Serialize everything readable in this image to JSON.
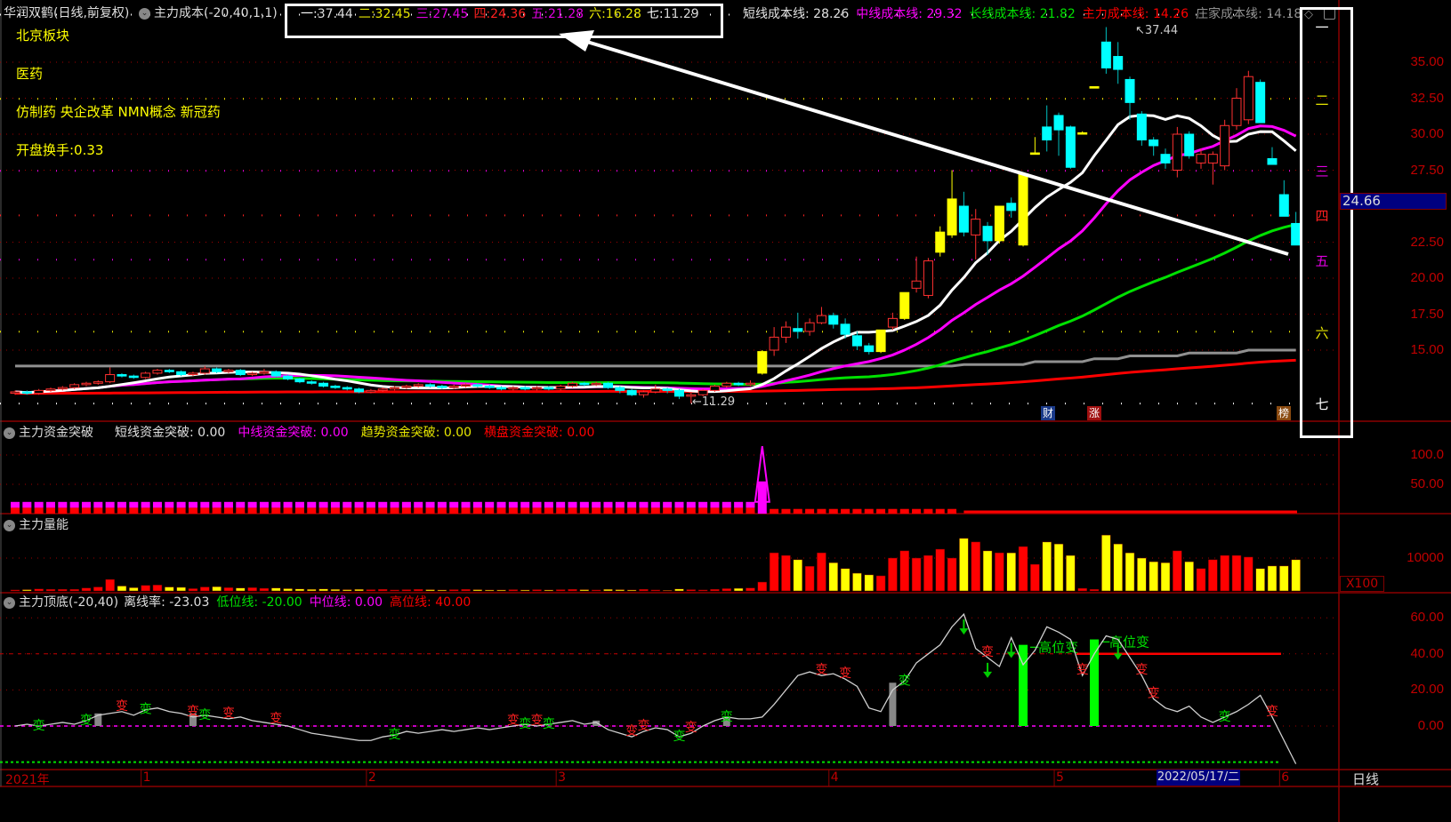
{
  "header": {
    "title": "华润双鹤(日线,前复权)",
    "indicator": "主力成本(-20,40,1,1)",
    "levels": [
      {
        "label": "一",
        "value": "37.44",
        "color": "#ffffff",
        "price": 37.44
      },
      {
        "label": "二",
        "value": "32.45",
        "color": "#e6e600",
        "price": 32.45
      },
      {
        "label": "三",
        "value": "27.45",
        "color": "#e000e0",
        "price": 27.45
      },
      {
        "label": "四",
        "value": "24.36",
        "color": "#ff2020",
        "price": 24.36
      },
      {
        "label": "五",
        "value": "21.28",
        "color": "#e000e0",
        "price": 21.28
      },
      {
        "label": "六",
        "value": "16.28",
        "color": "#e6e600",
        "price": 16.28
      },
      {
        "label": "七",
        "value": "11.29",
        "color": "#ffffff",
        "price": 11.29
      }
    ],
    "cost_lines": [
      {
        "label": "短线成本线",
        "value": "28.26",
        "color": "#e0e0e0"
      },
      {
        "label": "中线成本线",
        "value": "29.32",
        "color": "#ff00ff"
      },
      {
        "label": "长线成本线",
        "value": "21.82",
        "color": "#00e000"
      },
      {
        "label": "主力成本线",
        "value": "14.26",
        "color": "#ff0000"
      },
      {
        "label": "庄家成本线",
        "value": "14.18",
        "color": "#909090"
      }
    ]
  },
  "info": {
    "sector": "北京板块",
    "industry": "医药",
    "concepts": "仿制药 央企改革 NMN概念 新冠药",
    "turnover": "开盘换手:0.33"
  },
  "price_axis": [
    {
      "label": "35.00",
      "p": 35
    },
    {
      "label": "32.50",
      "p": 32.5
    },
    {
      "label": "30.00",
      "p": 30
    },
    {
      "label": "27.50",
      "p": 27.5
    },
    {
      "label": "22.50",
      "p": 22.5
    },
    {
      "label": "20.00",
      "p": 20
    },
    {
      "label": "17.50",
      "p": 17.5
    },
    {
      "label": "15.00",
      "p": 15
    }
  ],
  "current_price": "24.66",
  "high_label": "37.44",
  "low_label": "11.29",
  "badges": [
    "财",
    "涨",
    "榜"
  ],
  "chart_data": {
    "type": "candlestick",
    "candles": [
      [
        12.0,
        12.1,
        12.2,
        11.9
      ],
      [
        12.1,
        12.0,
        12.2,
        11.9
      ],
      [
        12.0,
        12.2,
        12.3,
        11.9
      ],
      [
        12.2,
        12.3,
        12.4,
        12.1
      ],
      [
        12.3,
        12.4,
        12.5,
        12.2
      ],
      [
        12.4,
        12.6,
        12.7,
        12.3
      ],
      [
        12.6,
        12.7,
        12.8,
        12.5
      ],
      [
        12.7,
        12.8,
        12.9,
        12.6
      ],
      [
        12.8,
        13.3,
        13.8,
        12.7
      ],
      [
        13.3,
        13.2,
        13.4,
        13.1
      ],
      [
        13.2,
        13.1,
        13.3,
        13.0
      ],
      [
        13.1,
        13.4,
        13.5,
        13.0
      ],
      [
        13.4,
        13.6,
        13.7,
        13.3
      ],
      [
        13.6,
        13.5,
        13.7,
        13.4
      ],
      [
        13.5,
        13.3,
        13.6,
        13.2
      ],
      [
        13.3,
        13.4,
        13.5,
        13.2
      ],
      [
        13.4,
        13.7,
        13.9,
        13.3
      ],
      [
        13.7,
        13.5,
        13.8,
        13.4
      ],
      [
        13.5,
        13.6,
        13.7,
        13.4
      ],
      [
        13.6,
        13.3,
        13.7,
        13.2
      ],
      [
        13.3,
        13.4,
        13.5,
        13.2
      ],
      [
        13.4,
        13.5,
        13.7,
        13.3
      ],
      [
        13.5,
        13.2,
        13.6,
        13.1
      ],
      [
        13.2,
        13.0,
        13.3,
        12.9
      ],
      [
        13.0,
        12.8,
        13.1,
        12.7
      ],
      [
        12.8,
        12.7,
        12.9,
        12.6
      ],
      [
        12.7,
        12.5,
        12.8,
        12.4
      ],
      [
        12.5,
        12.4,
        12.6,
        12.3
      ],
      [
        12.4,
        12.3,
        12.5,
        12.2
      ],
      [
        12.3,
        12.1,
        12.4,
        12.0
      ],
      [
        12.1,
        12.2,
        12.3,
        12.0
      ],
      [
        12.2,
        12.3,
        12.4,
        12.1
      ],
      [
        12.3,
        12.4,
        12.5,
        12.2
      ],
      [
        12.4,
        12.5,
        12.6,
        12.3
      ],
      [
        12.5,
        12.6,
        12.7,
        12.4
      ],
      [
        12.6,
        12.5,
        12.7,
        12.4
      ],
      [
        12.5,
        12.4,
        12.6,
        12.3
      ],
      [
        12.4,
        12.5,
        12.6,
        12.3
      ],
      [
        12.5,
        12.6,
        12.7,
        12.4
      ],
      [
        12.6,
        12.5,
        12.7,
        12.4
      ],
      [
        12.5,
        12.4,
        12.6,
        12.3
      ],
      [
        12.4,
        12.3,
        12.5,
        12.2
      ],
      [
        12.3,
        12.4,
        12.5,
        12.2
      ],
      [
        12.4,
        12.3,
        12.5,
        12.2
      ],
      [
        12.3,
        12.4,
        12.5,
        12.2
      ],
      [
        12.4,
        12.3,
        12.5,
        12.2
      ],
      [
        12.3,
        12.5,
        12.6,
        12.2
      ],
      [
        12.5,
        12.7,
        12.8,
        12.4
      ],
      [
        12.7,
        12.6,
        12.8,
        12.5
      ],
      [
        12.6,
        12.7,
        12.8,
        12.5
      ],
      [
        12.7,
        12.4,
        12.8,
        12.3
      ],
      [
        12.4,
        12.2,
        12.5,
        12.0
      ],
      [
        12.2,
        11.9,
        12.3,
        11.8
      ],
      [
        11.9,
        12.1,
        12.2,
        11.7
      ],
      [
        12.1,
        12.3,
        12.6,
        12.0
      ],
      [
        12.3,
        12.2,
        12.4,
        12.0
      ],
      [
        12.2,
        11.8,
        12.3,
        11.6
      ],
      [
        11.8,
        11.9,
        12.1,
        11.29
      ],
      [
        11.9,
        12.2,
        12.3,
        11.8
      ],
      [
        12.2,
        12.5,
        12.6,
        12.1
      ],
      [
        12.5,
        12.7,
        12.8,
        12.4
      ],
      [
        12.7,
        12.6,
        12.8,
        12.5
      ],
      [
        12.6,
        12.7,
        12.9,
        12.5
      ],
      [
        13.4,
        14.9,
        15.0,
        13.3
      ],
      [
        15.0,
        15.9,
        16.6,
        14.6
      ],
      [
        15.9,
        16.6,
        17.0,
        15.5
      ],
      [
        16.5,
        16.3,
        17.6,
        15.8
      ],
      [
        16.3,
        16.9,
        17.2,
        16.0
      ],
      [
        16.9,
        17.4,
        18.0,
        16.8
      ],
      [
        17.4,
        16.8,
        17.6,
        16.5
      ],
      [
        16.8,
        16.1,
        17.2,
        15.8
      ],
      [
        16.0,
        15.3,
        16.3,
        15.0
      ],
      [
        15.3,
        14.9,
        15.5,
        14.7
      ],
      [
        14.9,
        16.4,
        16.4,
        14.8
      ],
      [
        16.6,
        17.2,
        17.6,
        16.4
      ],
      [
        17.2,
        19.0,
        19.0,
        17.1
      ],
      [
        19.3,
        19.8,
        21.5,
        19.0
      ],
      [
        18.8,
        21.2,
        21.4,
        18.6
      ],
      [
        21.8,
        23.2,
        23.6,
        21.5
      ],
      [
        23.0,
        25.5,
        27.5,
        22.8
      ],
      [
        25.0,
        23.2,
        26.0,
        22.9
      ],
      [
        23.0,
        24.1,
        24.8,
        21.3
      ],
      [
        23.6,
        22.6,
        23.9,
        21.6
      ],
      [
        22.6,
        25.0,
        25.0,
        22.4
      ],
      [
        25.2,
        24.7,
        25.6,
        24.2
      ],
      [
        22.3,
        27.2,
        27.2,
        22.2
      ],
      [
        28.6,
        28.7,
        29.8,
        28.6
      ],
      [
        30.5,
        29.6,
        32.0,
        28.8
      ],
      [
        31.3,
        30.3,
        31.5,
        28.5
      ],
      [
        30.5,
        27.7,
        30.6,
        27.6
      ],
      [
        30.0,
        30.1,
        30.2,
        30.0
      ],
      [
        33.2,
        33.3,
        33.3,
        33.2
      ],
      [
        36.4,
        34.6,
        37.44,
        34.2
      ],
      [
        35.4,
        34.5,
        36.4,
        33.5
      ],
      [
        33.8,
        32.2,
        34.0,
        31.0
      ],
      [
        31.4,
        29.6,
        31.6,
        29.2
      ],
      [
        29.6,
        29.2,
        29.8,
        28.5
      ],
      [
        28.6,
        28.0,
        29.0,
        27.6
      ],
      [
        27.5,
        30.0,
        30.5,
        27.0
      ],
      [
        30.0,
        28.5,
        30.2,
        28.3
      ],
      [
        28.0,
        28.6,
        29.0,
        27.6
      ],
      [
        28.0,
        28.6,
        28.8,
        26.5
      ],
      [
        27.8,
        30.6,
        31.0,
        27.5
      ],
      [
        30.6,
        32.5,
        33.2,
        30.3
      ],
      [
        31.0,
        34.0,
        34.4,
        30.7
      ],
      [
        33.6,
        30.8,
        33.8,
        30.8
      ],
      [
        28.3,
        27.9,
        29.1,
        27.9
      ],
      [
        25.8,
        24.3,
        26.8,
        24.3
      ],
      [
        23.8,
        22.3,
        24.6,
        22.3
      ]
    ],
    "limit_up_indices": [
      63,
      73,
      75,
      78,
      79,
      83,
      85,
      86,
      90,
      91
    ],
    "price_range": [
      11.0,
      38.0
    ]
  },
  "fund_panel": {
    "title": "主力资金突破",
    "items": [
      {
        "label": "短线资金突破",
        "value": "0.00",
        "color": "#e0e0e0"
      },
      {
        "label": "中线资金突破",
        "value": "0.00",
        "color": "#ff00ff"
      },
      {
        "label": "趋势资金突破",
        "value": "0.00",
        "color": "#e6e600"
      },
      {
        "label": "横盘资金突破",
        "value": "0.00",
        "color": "#ff0000"
      }
    ],
    "axis": [
      {
        "label": "100.0",
        "v": 100
      },
      {
        "label": "50.00",
        "v": 50
      }
    ],
    "values": [
      20,
      20,
      20,
      20,
      20,
      20,
      20,
      20,
      20,
      20,
      20,
      20,
      20,
      20,
      20,
      20,
      20,
      20,
      20,
      20,
      20,
      20,
      20,
      20,
      20,
      20,
      20,
      20,
      20,
      20,
      20,
      20,
      20,
      20,
      20,
      20,
      20,
      20,
      20,
      20,
      20,
      20,
      20,
      20,
      20,
      20,
      20,
      20,
      20,
      20,
      20,
      20,
      20,
      20,
      20,
      20,
      20,
      20,
      20,
      20,
      20,
      20,
      20,
      115,
      8,
      8,
      8,
      8,
      8,
      8,
      8,
      8,
      8,
      8,
      8,
      8,
      8,
      8,
      8,
      8,
      0,
      0,
      0,
      0,
      0,
      0,
      0,
      0,
      0,
      0,
      0,
      0,
      0,
      0,
      0,
      0,
      0,
      0,
      0,
      0,
      0,
      0,
      0,
      0,
      0,
      0,
      0,
      0,
      0
    ]
  },
  "volume_panel": {
    "title": "主力量能",
    "axis": [
      {
        "label": "10000",
        "v": 10000
      }
    ],
    "unit": "X100",
    "values": [
      300,
      400,
      600,
      500,
      500,
      500,
      900,
      1200,
      3500,
      1500,
      1000,
      1700,
      1800,
      1200,
      1100,
      700,
      1200,
      1300,
      1000,
      900,
      1000,
      800,
      900,
      700,
      600,
      500,
      600,
      500,
      400,
      500,
      400,
      500,
      300,
      400,
      500,
      400,
      300,
      400,
      500,
      400,
      300,
      300,
      400,
      300,
      400,
      300,
      400,
      500,
      400,
      300,
      500,
      400,
      300,
      500,
      300,
      200,
      600,
      400,
      300,
      500,
      700,
      800,
      900,
      2700,
      11600,
      10800,
      9500,
      7500,
      11600,
      8600,
      6800,
      5400,
      4900,
      4600,
      10000,
      12200,
      10000,
      10800,
      12700,
      10000,
      16000,
      14900,
      12200,
      11600,
      11600,
      13500,
      8100,
      14900,
      14300,
      10800,
      800,
      500,
      17000,
      14300,
      11600,
      10000,
      8900,
      8600,
      12200,
      8900,
      6800,
      9500,
      10800,
      10800,
      10300,
      6800,
      7600,
      7600,
      9500
    ]
  },
  "top_panel": {
    "title": "主力顶底(-20,40)",
    "items": [
      {
        "label": "离线率",
        "value": "-23.03",
        "color": "#e0e0e0"
      },
      {
        "label": "低位线",
        "value": "-20.00",
        "color": "#00e000"
      },
      {
        "label": "中位线",
        "value": "0.00",
        "color": "#ff00ff"
      },
      {
        "label": "高位线",
        "value": "40.00",
        "color": "#ff0000"
      }
    ],
    "axis": [
      {
        "label": "60.00",
        "v": 60
      },
      {
        "label": "40.00",
        "v": 40
      },
      {
        "label": "20.00",
        "v": 20
      },
      {
        "label": "0.00",
        "v": 0
      }
    ],
    "values": [
      0,
      1,
      0,
      1,
      2,
      1,
      3,
      6,
      7,
      8,
      6,
      9,
      10,
      8,
      7,
      5,
      6,
      5,
      4,
      5,
      3,
      2,
      1,
      0,
      -2,
      -4,
      -5,
      -6,
      -7,
      -8,
      -8,
      -6,
      -5,
      -3,
      -4,
      -3,
      -2,
      -3,
      -2,
      -1,
      -2,
      -1,
      0,
      1,
      0,
      1,
      2,
      3,
      1,
      2,
      -2,
      -4,
      -6,
      -3,
      -1,
      -2,
      -6,
      -4,
      0,
      3,
      5,
      4,
      4,
      5,
      12,
      20,
      28,
      30,
      28,
      29,
      26,
      22,
      10,
      8,
      20,
      25,
      35,
      40,
      45,
      55,
      62,
      43,
      38,
      33,
      49,
      34,
      42,
      55,
      52,
      48,
      28,
      40,
      50,
      48,
      38,
      28,
      15,
      10,
      8,
      11,
      5,
      2,
      5,
      8,
      12,
      17,
      5,
      -8,
      -21
    ],
    "marker_text": "变",
    "markers_green": [
      2,
      6,
      11,
      16,
      32,
      43,
      45,
      56,
      60,
      75,
      102
    ],
    "markers_red": [
      9,
      15,
      18,
      22,
      42,
      44,
      52,
      53,
      57,
      68,
      70,
      82,
      90,
      95,
      96,
      106
    ],
    "high_signal_label": "高位变",
    "high_signals": [
      {
        "i": 85,
        "v": 45
      },
      {
        "i": 91,
        "v": 48
      }
    ],
    "gray_bars": [
      {
        "i": 7,
        "v": 7
      },
      {
        "i": 15,
        "v": 7
      },
      {
        "i": 49,
        "v": 3
      },
      {
        "i": 60,
        "v": 5
      },
      {
        "i": 74,
        "v": 24
      }
    ],
    "down_arrows": [
      80,
      82,
      84,
      93
    ],
    "colors": {
      "line": "#d0d0d0",
      "up": "#ff2020",
      "down": "#00ffff",
      "limit": "#ffff00",
      "green": "#00ff00"
    }
  },
  "time_axis": {
    "labels": [
      {
        "t": "2021年",
        "i": -1
      },
      {
        "t": "1",
        "i": 11
      },
      {
        "t": "2",
        "i": 30
      },
      {
        "t": "3",
        "i": 46
      },
      {
        "t": "4",
        "i": 69
      },
      {
        "t": "5",
        "i": 88
      },
      {
        "t": "6",
        "i": 107
      }
    ],
    "cursor_date": "2022/05/17/二",
    "period": "日线"
  }
}
